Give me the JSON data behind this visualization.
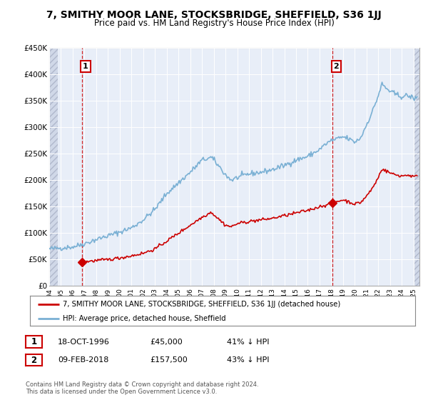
{
  "title": "7, SMITHY MOOR LANE, STOCKSBRIDGE, SHEFFIELD, S36 1JJ",
  "subtitle": "Price paid vs. HM Land Registry's House Price Index (HPI)",
  "xmin": 1994.0,
  "xmax": 2025.5,
  "ymin": 0,
  "ymax": 450000,
  "yticks": [
    0,
    50000,
    100000,
    150000,
    200000,
    250000,
    300000,
    350000,
    400000,
    450000
  ],
  "ytick_labels": [
    "£0",
    "£50K",
    "£100K",
    "£150K",
    "£200K",
    "£250K",
    "£300K",
    "£350K",
    "£400K",
    "£450K"
  ],
  "xticks": [
    1994,
    1995,
    1996,
    1997,
    1998,
    1999,
    2000,
    2001,
    2002,
    2003,
    2004,
    2005,
    2006,
    2007,
    2008,
    2009,
    2010,
    2011,
    2012,
    2013,
    2014,
    2015,
    2016,
    2017,
    2018,
    2019,
    2020,
    2021,
    2022,
    2023,
    2024,
    2025
  ],
  "sale1_x": 1996.79,
  "sale1_y": 45000,
  "sale2_x": 2018.11,
  "sale2_y": 157500,
  "vline1_x": 1996.79,
  "vline2_x": 2018.11,
  "legend_line1": "7, SMITHY MOOR LANE, STOCKSBRIDGE, SHEFFIELD, S36 1JJ (detached house)",
  "legend_line2": "HPI: Average price, detached house, Sheffield",
  "annotation1_label": "1",
  "annotation2_label": "2",
  "table_row1": [
    "1",
    "18-OCT-1996",
    "£45,000",
    "41% ↓ HPI"
  ],
  "table_row2": [
    "2",
    "09-FEB-2018",
    "£157,500",
    "43% ↓ HPI"
  ],
  "footnote1": "Contains HM Land Registry data © Crown copyright and database right 2024.",
  "footnote2": "This data is licensed under the Open Government Licence v3.0.",
  "property_line_color": "#cc0000",
  "hpi_line_color": "#7ab0d4",
  "vline_color": "#cc0000",
  "background_color": "#ffffff",
  "plot_bg_color": "#e8eef8",
  "hatch_color": "#d0d8e8",
  "grid_color": "#ffffff",
  "annotation_box_color": "#cc0000",
  "hpi_anchors_x": [
    1994,
    1995,
    1996,
    1997,
    1998,
    1999,
    2000,
    2001,
    2002,
    2003,
    2004,
    2005,
    2006,
    2007,
    2007.8,
    2008,
    2008.5,
    2009,
    2009.5,
    2010,
    2011,
    2012,
    2013,
    2014,
    2015,
    2016,
    2017,
    2017.5,
    2018,
    2018.5,
    2019,
    2019.5,
    2020,
    2020.5,
    2021,
    2021.5,
    2022,
    2022.3,
    2022.6,
    2023,
    2023.5,
    2024,
    2024.5,
    2025
  ],
  "hpi_anchors_y": [
    70000,
    72000,
    74000,
    80000,
    88000,
    95000,
    102000,
    110000,
    125000,
    145000,
    175000,
    195000,
    215000,
    238000,
    243000,
    238000,
    225000,
    210000,
    200000,
    205000,
    212000,
    215000,
    220000,
    228000,
    238000,
    245000,
    258000,
    268000,
    275000,
    278000,
    282000,
    278000,
    272000,
    280000,
    305000,
    330000,
    360000,
    382000,
    375000,
    368000,
    362000,
    358000,
    360000,
    355000
  ],
  "prop_anchors_x": [
    1996.8,
    1997,
    1998,
    1999,
    2000,
    2001,
    2002,
    2003,
    2004,
    2005,
    2006,
    2007,
    2007.8,
    2008,
    2008.5,
    2009,
    2009.5,
    2010,
    2011,
    2012,
    2013,
    2014,
    2015,
    2016,
    2017,
    2018,
    2018.11,
    2019,
    2020,
    2020.5,
    2021,
    2021.5,
    2022,
    2022.3,
    2022.6,
    2023,
    2023.5,
    2024,
    2024.5,
    2025
  ],
  "prop_anchors_y": [
    45000,
    46000,
    48000,
    50000,
    53000,
    57000,
    62000,
    70000,
    85000,
    100000,
    115000,
    130000,
    140000,
    135000,
    125000,
    115000,
    112000,
    118000,
    122000,
    125000,
    128000,
    133000,
    138000,
    143000,
    150000,
    156000,
    157500,
    163000,
    155000,
    158000,
    170000,
    185000,
    205000,
    222000,
    218000,
    214000,
    210000,
    208000,
    210000,
    207000
  ]
}
